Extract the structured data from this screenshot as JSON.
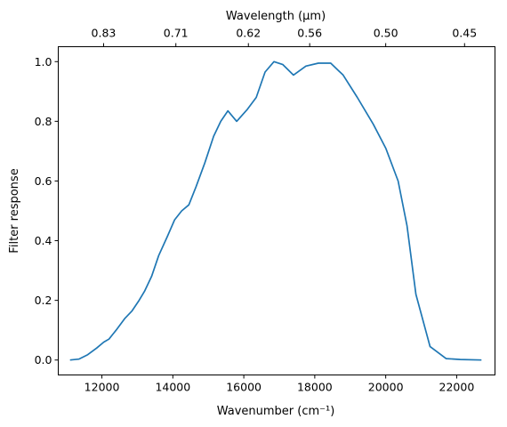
{
  "chart_data": {
    "type": "line",
    "top_axis_label": "Wavelength (μm)",
    "xlabel": "Wavenumber (cm⁻¹)",
    "ylabel": "Filter response",
    "xlim": [
      10770,
      23080
    ],
    "ylim": [
      -0.05,
      1.05
    ],
    "x_ticks": [
      12000,
      14000,
      16000,
      18000,
      20000,
      22000
    ],
    "x_tick_labels": [
      "12000",
      "14000",
      "16000",
      "18000",
      "20000",
      "22000"
    ],
    "y_ticks": [
      0.0,
      0.2,
      0.4,
      0.6,
      0.8,
      1.0
    ],
    "y_tick_labels": [
      "0.0",
      "0.2",
      "0.4",
      "0.6",
      "0.8",
      "1.0"
    ],
    "top_ticks": [
      {
        "wavenumber": 12048,
        "label": "0.83"
      },
      {
        "wavenumber": 14085,
        "label": "0.71"
      },
      {
        "wavenumber": 16129,
        "label": "0.62"
      },
      {
        "wavenumber": 17857,
        "label": "0.56"
      },
      {
        "wavenumber": 20000,
        "label": "0.50"
      },
      {
        "wavenumber": 22222,
        "label": "0.45"
      }
    ],
    "grid": false,
    "series": [
      {
        "color": "#1f77b4",
        "x": [
          11100,
          11350,
          11600,
          11850,
          12050,
          12200,
          12400,
          12650,
          12850,
          13050,
          13200,
          13400,
          13600,
          13850,
          14050,
          14250,
          14450,
          14650,
          14900,
          15150,
          15350,
          15550,
          15800,
          16100,
          16350,
          16600,
          16850,
          17100,
          17400,
          17750,
          18100,
          18450,
          18800,
          19200,
          19650,
          20000,
          20350,
          20600,
          20850,
          21250,
          21700,
          22100,
          22700
        ],
        "y": [
          0.0,
          0.003,
          0.018,
          0.04,
          0.06,
          0.07,
          0.1,
          0.14,
          0.165,
          0.2,
          0.23,
          0.28,
          0.35,
          0.415,
          0.47,
          0.5,
          0.52,
          0.58,
          0.66,
          0.75,
          0.8,
          0.835,
          0.8,
          0.84,
          0.88,
          0.965,
          1.0,
          0.99,
          0.955,
          0.985,
          0.995,
          0.995,
          0.955,
          0.88,
          0.79,
          0.71,
          0.6,
          0.45,
          0.22,
          0.045,
          0.005,
          0.002,
          0.0
        ]
      }
    ]
  }
}
